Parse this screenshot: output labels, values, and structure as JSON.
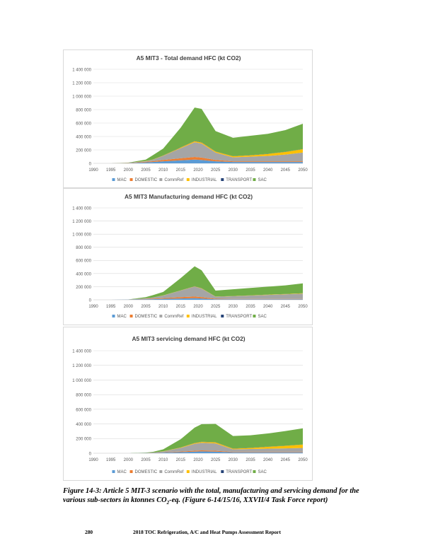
{
  "colors": {
    "MAC": "#5b9bd5",
    "DOMESTIC": "#ed7d31",
    "CommRef": "#a5a5a5",
    "INDUSTRIAL": "#ffc000",
    "TRANSPORT": "#264478",
    "SAC": "#70ad47",
    "grid": "#d9d9d9",
    "axis_text": "#595959"
  },
  "chart_data": [
    {
      "type": "area",
      "stacked": true,
      "title": "A5 MIT3 - Total demand HFC (kt CO2)",
      "xlabel": "",
      "ylabel": "",
      "x": [
        1990,
        1995,
        2000,
        2005,
        2007,
        2010,
        2015,
        2019,
        2021,
        2025,
        2030,
        2035,
        2040,
        2045,
        2050
      ],
      "ylim": [
        0,
        1400000
      ],
      "yticks": [
        0,
        200000,
        400000,
        600000,
        800000,
        1000000,
        1200000,
        1400000
      ],
      "ytick_labels": [
        "0",
        "200 000",
        "400 000",
        "600 000",
        "800 000",
        "1 000 000",
        "1 200 000",
        "1 400 000"
      ],
      "xticks": [
        1990,
        1995,
        2000,
        2005,
        2010,
        2015,
        2020,
        2025,
        2030,
        2035,
        2040,
        2045,
        2050
      ],
      "xtick_labels": [
        "1990",
        "1995",
        "2000",
        "2005",
        "2010",
        "2015",
        "2020",
        "2025",
        "2030",
        "2035",
        "2040",
        "2045",
        "2050"
      ],
      "legend": "bottom",
      "series": [
        {
          "name": "MAC",
          "values": [
            0,
            0,
            3000,
            15000,
            20000,
            30000,
            45000,
            55000,
            50000,
            30000,
            20000,
            20000,
            20000,
            20000,
            20000
          ]
        },
        {
          "name": "DOMESTIC",
          "values": [
            0,
            0,
            2000,
            8000,
            12000,
            20000,
            30000,
            40000,
            35000,
            20000,
            10000,
            10000,
            10000,
            10000,
            10000
          ]
        },
        {
          "name": "CommRef",
          "values": [
            0,
            0,
            3000,
            10000,
            20000,
            60000,
            150000,
            220000,
            210000,
            110000,
            60000,
            70000,
            80000,
            100000,
            130000
          ]
        },
        {
          "name": "INDUSTRIAL",
          "values": [
            0,
            0,
            0,
            2000,
            3000,
            6000,
            10000,
            15000,
            15000,
            15000,
            15000,
            20000,
            30000,
            40000,
            50000
          ]
        },
        {
          "name": "TRANSPORT",
          "values": [
            0,
            0,
            0,
            1000,
            1000,
            2000,
            3000,
            4000,
            4000,
            3000,
            2000,
            2000,
            2000,
            2000,
            2000
          ]
        },
        {
          "name": "SAC",
          "values": [
            0,
            0,
            2000,
            19000,
            64000,
            102000,
            292000,
            496000,
            496000,
            302000,
            273000,
            288000,
            298000,
            323000,
            378000
          ]
        }
      ]
    },
    {
      "type": "area",
      "stacked": true,
      "title": "A5 MIT3 Manufacturing demand HFC (kt CO2)",
      "xlabel": "",
      "ylabel": "",
      "x": [
        1990,
        1995,
        2000,
        2005,
        2007,
        2010,
        2015,
        2019,
        2021,
        2025,
        2030,
        2035,
        2040,
        2045,
        2050
      ],
      "ylim": [
        0,
        1400000
      ],
      "yticks": [
        0,
        200000,
        400000,
        600000,
        800000,
        1000000,
        1200000,
        1400000
      ],
      "ytick_labels": [
        "0",
        "200 000",
        "400 000",
        "600 000",
        "800 000",
        "1 000 000",
        "1 200 000",
        "1 400 000"
      ],
      "xticks": [
        1990,
        1995,
        2000,
        2005,
        2010,
        2015,
        2020,
        2025,
        2030,
        2035,
        2040,
        2045,
        2050
      ],
      "xtick_labels": [
        "1990",
        "1995",
        "2000",
        "2005",
        "2010",
        "2015",
        "2020",
        "2025",
        "2030",
        "2035",
        "2040",
        "2045",
        "2050"
      ],
      "legend": "bottom",
      "series": [
        {
          "name": "MAC",
          "values": [
            0,
            0,
            2000,
            8000,
            10000,
            15000,
            20000,
            25000,
            20000,
            8000,
            8000,
            8000,
            8000,
            8000,
            8000
          ]
        },
        {
          "name": "DOMESTIC",
          "values": [
            0,
            0,
            1000,
            5000,
            8000,
            10000,
            20000,
            25000,
            20000,
            8000,
            6000,
            6000,
            6000,
            6000,
            6000
          ]
        },
        {
          "name": "CommRef",
          "values": [
            0,
            0,
            2000,
            10000,
            15000,
            40000,
            100000,
            150000,
            130000,
            30000,
            40000,
            50000,
            60000,
            70000,
            80000
          ]
        },
        {
          "name": "INDUSTRIAL",
          "values": [
            0,
            0,
            0,
            1000,
            1000,
            2000,
            3000,
            5000,
            5000,
            3000,
            3000,
            3000,
            4000,
            4000,
            5000
          ]
        },
        {
          "name": "TRANSPORT",
          "values": [
            0,
            0,
            0,
            500,
            500,
            1000,
            1000,
            2000,
            2000,
            1000,
            1000,
            1000,
            1000,
            1000,
            1000
          ]
        },
        {
          "name": "SAC",
          "values": [
            0,
            0,
            1000,
            15500,
            35500,
            52000,
            186000,
            303000,
            273000,
            90000,
            102000,
            112000,
            121000,
            131000,
            150000
          ]
        }
      ]
    },
    {
      "type": "area",
      "stacked": true,
      "title": "A5 MIT3 servicing demand HFC (kt CO2)",
      "xlabel": "",
      "ylabel": "",
      "x": [
        1990,
        1995,
        2000,
        2005,
        2007,
        2010,
        2015,
        2019,
        2021,
        2025,
        2030,
        2035,
        2040,
        2045,
        2050
      ],
      "ylim": [
        0,
        1400000
      ],
      "yticks": [
        0,
        200000,
        400000,
        600000,
        800000,
        1000000,
        1200000,
        1400000
      ],
      "ytick_labels": [
        "0",
        "200 000",
        "400 000",
        "600 000",
        "800 000",
        "1 000 000",
        "1 200 000",
        "1 400 000"
      ],
      "xticks": [
        1990,
        1995,
        2000,
        2005,
        2010,
        2015,
        2020,
        2025,
        2030,
        2035,
        2040,
        2045,
        2050
      ],
      "xtick_labels": [
        "1990",
        "1995",
        "2000",
        "2005",
        "2010",
        "2015",
        "2020",
        "2025",
        "2030",
        "2035",
        "2040",
        "2045",
        "2050"
      ],
      "legend": "bottom",
      "series": [
        {
          "name": "MAC",
          "values": [
            0,
            0,
            0,
            2000,
            4000,
            8000,
            15000,
            22000,
            25000,
            22000,
            12000,
            12000,
            12000,
            12000,
            12000
          ]
        },
        {
          "name": "DOMESTIC",
          "values": [
            0,
            0,
            0,
            1000,
            2000,
            4000,
            8000,
            12000,
            13000,
            12000,
            6000,
            6000,
            6000,
            6000,
            6000
          ]
        },
        {
          "name": "CommRef",
          "values": [
            0,
            0,
            0,
            2000,
            4000,
            12000,
            50000,
            95000,
            105000,
            100000,
            35000,
            40000,
            45000,
            48000,
            55000
          ]
        },
        {
          "name": "INDUSTRIAL",
          "values": [
            0,
            0,
            0,
            0,
            0,
            2000,
            5000,
            10000,
            12000,
            15000,
            10000,
            15000,
            25000,
            35000,
            45000
          ]
        },
        {
          "name": "TRANSPORT",
          "values": [
            0,
            0,
            0,
            0,
            0,
            1000,
            1000,
            2000,
            2000,
            2000,
            2000,
            2000,
            2000,
            2000,
            2000
          ]
        },
        {
          "name": "SAC",
          "values": [
            0,
            0,
            0,
            3000,
            8000,
            26000,
            112000,
            209000,
            240000,
            250000,
            170000,
            170000,
            180000,
            200000,
            220000
          ]
        }
      ]
    }
  ],
  "caption": {
    "lead": "Figure 14-3:  Article 5 MIT-3 scenario with the total, manufacturing and servicing demand for the various sub-sectors in ktonnes CO",
    "subscript": "2",
    "tail": "-eq. (Figure 6-14/15/16, XXVII/4 Task Force report)"
  },
  "footer": {
    "page_number": "280",
    "title": "2018 TOC Refrigeration, A/C and Heat Pumps Assessment Report"
  }
}
